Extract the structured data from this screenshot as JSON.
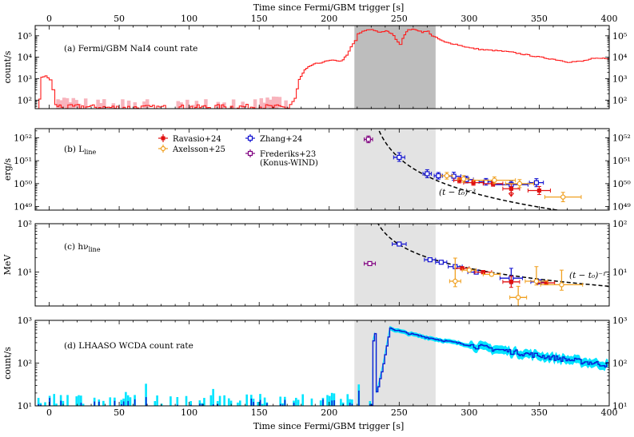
{
  "chart_data": {
    "type": "multi-panel",
    "x_title": "Time since Fermi/GBM trigger [s]",
    "xlim": [
      -10,
      400
    ],
    "x_ticks": [
      0,
      50,
      100,
      150,
      200,
      250,
      300,
      350,
      400
    ],
    "shade_dark": [
      218,
      276
    ],
    "shade_light": [
      218,
      276
    ],
    "panels": [
      {
        "id": "a",
        "label": "(a) Fermi/GBM NaI4 count rate",
        "ylabel": "count/s",
        "yscale": "log",
        "ylim": [
          40,
          300000
        ],
        "y_ticks": [
          100,
          1000,
          10000,
          100000
        ],
        "y_tick_labels": [
          "10²",
          "10³",
          "10⁴",
          "10⁵"
        ],
        "series_color": "#ff1a1a",
        "band_color": "#f8b4bd",
        "lightcurve": [
          [
            -10,
            1
          ],
          [
            -6,
            1200
          ],
          [
            -3,
            1300
          ],
          [
            0,
            900
          ],
          [
            2,
            300
          ],
          [
            4,
            60
          ],
          [
            10,
            45
          ],
          [
            20,
            50
          ],
          [
            40,
            45
          ],
          [
            80,
            45
          ],
          [
            120,
            48
          ],
          [
            150,
            50
          ],
          [
            170,
            45
          ],
          [
            175,
            120
          ],
          [
            178,
            900
          ],
          [
            182,
            2500
          ],
          [
            186,
            4000
          ],
          [
            190,
            5000
          ],
          [
            195,
            6000
          ],
          [
            200,
            7000
          ],
          [
            205,
            7000
          ],
          [
            208,
            6500
          ],
          [
            212,
            12000
          ],
          [
            215,
            30000
          ],
          [
            218,
            60000
          ],
          [
            220,
            120000
          ],
          [
            225,
            180000
          ],
          [
            230,
            200000
          ],
          [
            236,
            140000
          ],
          [
            240,
            170000
          ],
          [
            244,
            130000
          ],
          [
            250,
            40000
          ],
          [
            252,
            80000
          ],
          [
            256,
            200000
          ],
          [
            262,
            190000
          ],
          [
            266,
            150000
          ],
          [
            270,
            160000
          ],
          [
            273,
            100000
          ],
          [
            276,
            80000
          ],
          [
            282,
            50000
          ],
          [
            290,
            40000
          ],
          [
            300,
            27000
          ],
          [
            310,
            22000
          ],
          [
            320,
            20000
          ],
          [
            330,
            17000
          ],
          [
            340,
            13000
          ],
          [
            350,
            10000
          ],
          [
            360,
            8000
          ],
          [
            370,
            6000
          ],
          [
            380,
            6500
          ],
          [
            387,
            8500
          ],
          [
            400,
            9000
          ]
        ]
      },
      {
        "id": "b",
        "label": "(b) L",
        "label_sub": "line",
        "ylabel": "erg/s",
        "yscale": "log",
        "ylim": [
          7e+48,
          2.5e+52
        ],
        "y_ticks": [
          1e+49,
          1e+50,
          1e+51,
          1e+52
        ],
        "y_tick_labels": [
          "10⁴⁹",
          "10⁵⁰",
          "10⁵¹",
          "10⁵²"
        ],
        "curve_label": "(t − t₀)⁻³",
        "curve": {
          "t0": 226,
          "norm_t": 250,
          "norm_v": 1.3e+51,
          "index": -3
        },
        "legend": [
          {
            "name": "Ravasio+24",
            "color": "#e01010",
            "filled": true
          },
          {
            "name": "Axelsson+25",
            "color": "#f0a020",
            "filled": false
          },
          {
            "name": "Zhang+24",
            "color": "#1010d0",
            "filled": false
          },
          {
            "name": "Frederiks+23",
            "name2": "(Konus-WIND)",
            "color": "#800080",
            "filled": false
          }
        ],
        "series": [
          {
            "name": "Frederiks+23",
            "color": "#800080",
            "points": [
              [
                228,
                8.5e+51,
                3,
                1.4,
                1.4
              ]
            ]
          },
          {
            "name": "Zhang+24",
            "color": "#1010d0",
            "points": [
              [
                250,
                1.4e+51,
                4,
                1.6,
                1.5
              ],
              [
                270,
                2.7e+50,
                3,
                1.5,
                1.5
              ],
              [
                278,
                2.2e+50,
                3,
                1.4,
                1.4
              ],
              [
                289,
                2.1e+50,
                5,
                1.5,
                1.5
              ],
              [
                298,
                1.5e+50,
                5,
                1.4,
                1.4
              ],
              [
                312,
                1.2e+50,
                5,
                1.4,
                1.4
              ],
              [
                330,
                9e+49,
                12,
                1.4,
                1.4
              ],
              [
                348,
                1.1e+50,
                5,
                1.5,
                1.5
              ]
            ]
          },
          {
            "name": "Ravasio+24",
            "color": "#e01010",
            "points": [
              [
                293,
                1.4e+50,
                4,
                1.3,
                1.3
              ],
              [
                303,
                1.1e+50,
                7,
                1.3,
                1.3
              ],
              [
                317,
                1e+50,
                7,
                1.3,
                1.3
              ],
              [
                330,
                6e+49,
                6,
                1.6,
                1.5
              ],
              [
                350,
                5e+49,
                8,
                1.5,
                1.5
              ]
            ]
          },
          {
            "name": "Axelsson+25",
            "color": "#f0a020",
            "points": [
              [
                284,
                2.2e+50,
                4,
                1.4,
                1.4
              ],
              [
                296,
                1.6e+50,
                4,
                1.4,
                1.4
              ],
              [
                318,
                1.4e+50,
                15,
                1.4,
                1.4
              ],
              [
                336,
                1e+50,
                10,
                1.5,
                1.5
              ],
              [
                367,
                2.6e+49,
                13,
                1.6,
                1.6
              ]
            ]
          }
        ]
      },
      {
        "id": "c",
        "label": "(c) hν",
        "label_sub": "line",
        "ylabel": "MeV",
        "yscale": "log",
        "ylim": [
          2,
          100
        ],
        "y_ticks": [
          10,
          100
        ],
        "y_tick_labels": [
          "10¹",
          "10²"
        ],
        "curve_label": "(t − t₀)⁻¹",
        "curve": {
          "t0": 226,
          "norm_t": 250,
          "norm_v": 37,
          "index": -1
        },
        "series": [
          {
            "name": "Frederiks+23",
            "color": "#800080",
            "points": [
              [
                229,
                15,
                4,
                1.1,
                1.1
              ]
            ]
          },
          {
            "name": "Zhang+24",
            "color": "#1010d0",
            "points": [
              [
                250,
                38,
                5,
                1.06,
                1.06
              ],
              [
                272,
                18,
                4,
                1.05,
                1.05
              ],
              [
                280,
                16,
                4,
                1.05,
                1.05
              ],
              [
                290,
                13,
                5,
                1.05,
                1.05
              ],
              [
                305,
                10,
                6,
                1.06,
                1.06
              ],
              [
                330,
                7.5,
                8,
                1.6,
                1.3
              ],
              [
                350,
                6.3,
                6,
                1.1,
                1.1
              ]
            ]
          },
          {
            "name": "Ravasio+24",
            "color": "#e01010",
            "points": [
              [
                295,
                12,
                5,
                1.08,
                1.08
              ],
              [
                310,
                10,
                6,
                1.08,
                1.08
              ],
              [
                330,
                6.3,
                6,
                1.3,
                1.3
              ],
              [
                355,
                6.0,
                6,
                1.1,
                1.1
              ]
            ]
          },
          {
            "name": "Axelsson+25",
            "color": "#f0a020",
            "points": [
              [
                290,
                6.5,
                4,
                3.0,
                1.3
              ],
              [
                300,
                11,
                5,
                1.08,
                1.08
              ],
              [
                316,
                9.0,
                6,
                1.08,
                1.08
              ],
              [
                335,
                3.0,
                6,
                1.7,
                1.6
              ],
              [
                348,
                6.5,
                8,
                2.0,
                1.2
              ],
              [
                366,
                5.5,
                15,
                2.0,
                1.3
              ]
            ]
          }
        ]
      },
      {
        "id": "d",
        "label": "(d) LHAASO WCDA count rate",
        "ylabel": "count/s",
        "yscale": "log",
        "ylim": [
          10,
          1000
        ],
        "y_ticks": [
          10,
          100,
          1000
        ],
        "y_tick_labels": [
          "10¹",
          "10²",
          "10³"
        ],
        "series_color": "#0a1fd4",
        "band_color": "#00e5ff",
        "onset": 230,
        "peak": [
          243,
          680
        ],
        "end": [
          400,
          90
        ]
      }
    ]
  }
}
